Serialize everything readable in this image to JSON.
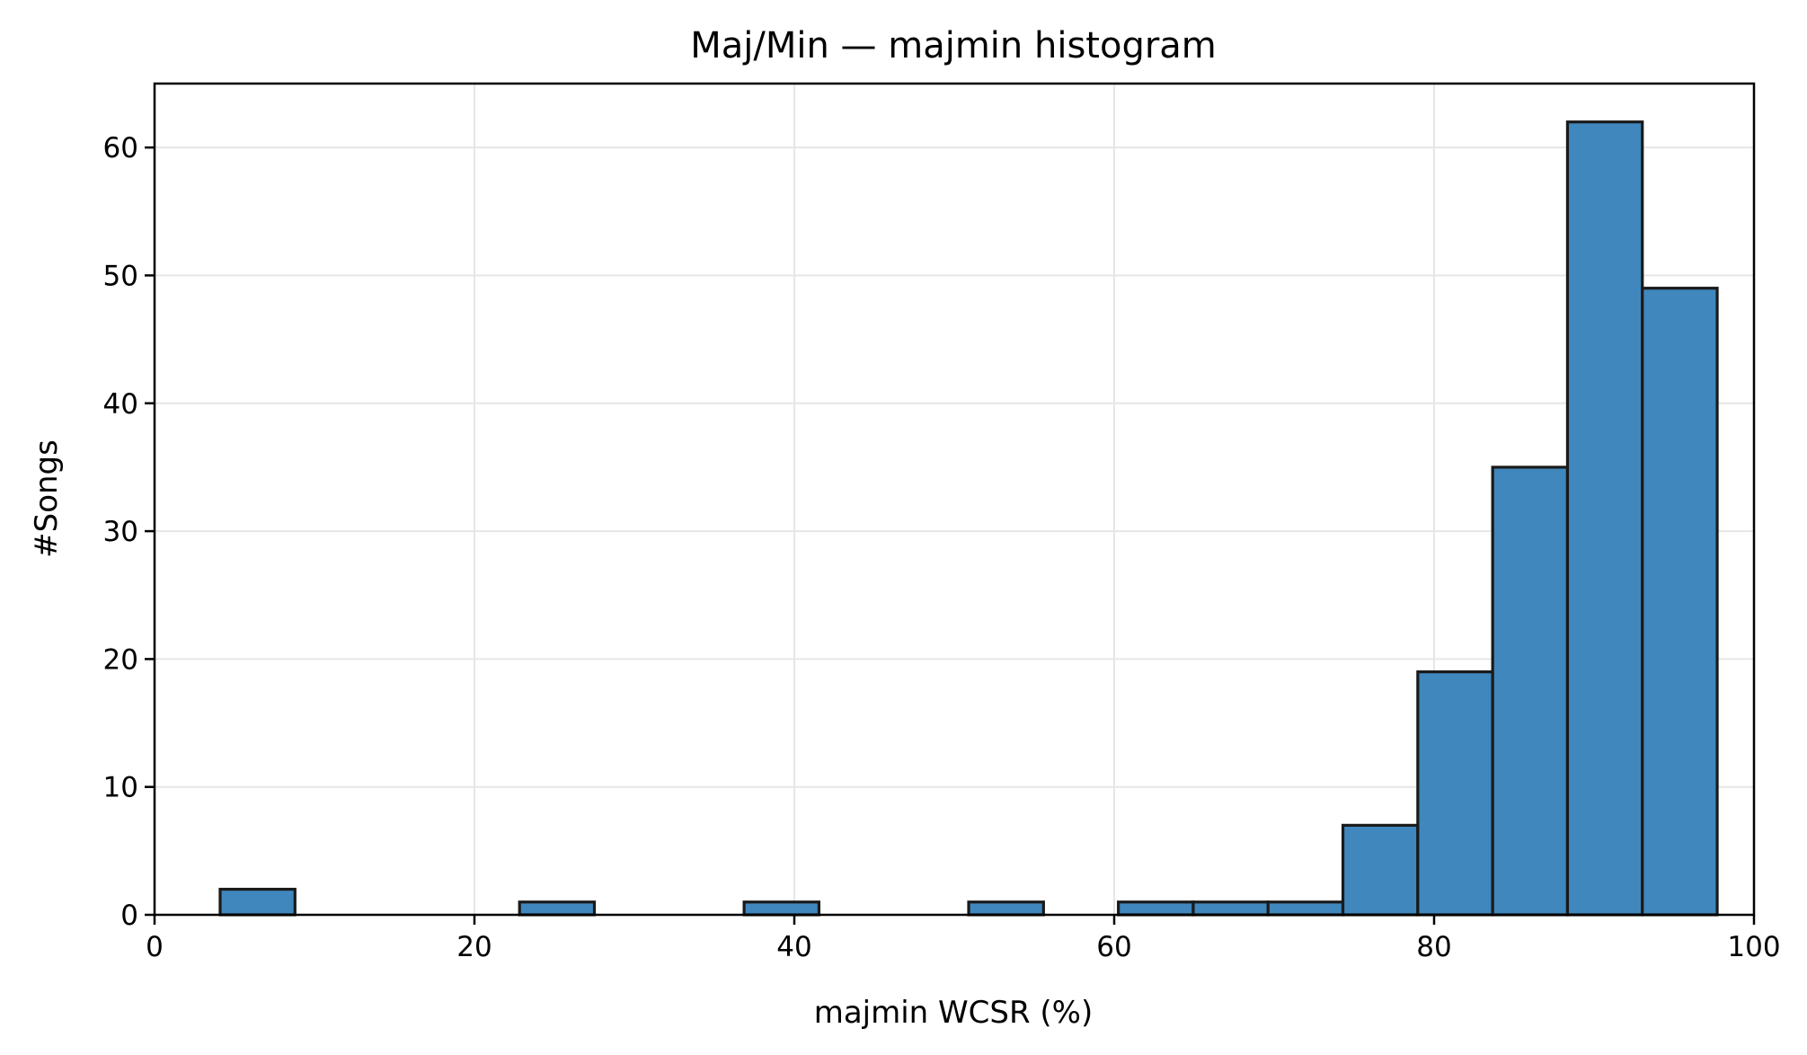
{
  "chart_data": {
    "type": "bar",
    "title": "Maj/Min — majmin histogram",
    "xlabel": "majmin WCSR (%)",
    "ylabel": "#Songs",
    "xlim": [
      0,
      100
    ],
    "ylim": [
      0,
      65
    ],
    "xticks": [
      0,
      20,
      40,
      60,
      80,
      100
    ],
    "yticks": [
      0,
      10,
      20,
      30,
      40,
      50,
      60
    ],
    "grid": true,
    "bin_edges": [
      4.1,
      8.78,
      13.46,
      18.14,
      22.82,
      27.5,
      32.18,
      36.86,
      41.54,
      46.22,
      50.9,
      55.58,
      60.26,
      64.94,
      69.62,
      74.3,
      78.98,
      83.66,
      88.34,
      93.02,
      97.7
    ],
    "values": [
      2,
      0,
      0,
      0,
      1,
      0,
      0,
      1,
      0,
      0,
      1,
      0,
      1,
      1,
      1,
      7,
      19,
      35,
      62,
      49
    ],
    "colors": {
      "bar_fill": "#3f87bc",
      "bar_edge": "#1a1a1a",
      "grid": "#e6e6e6"
    }
  }
}
